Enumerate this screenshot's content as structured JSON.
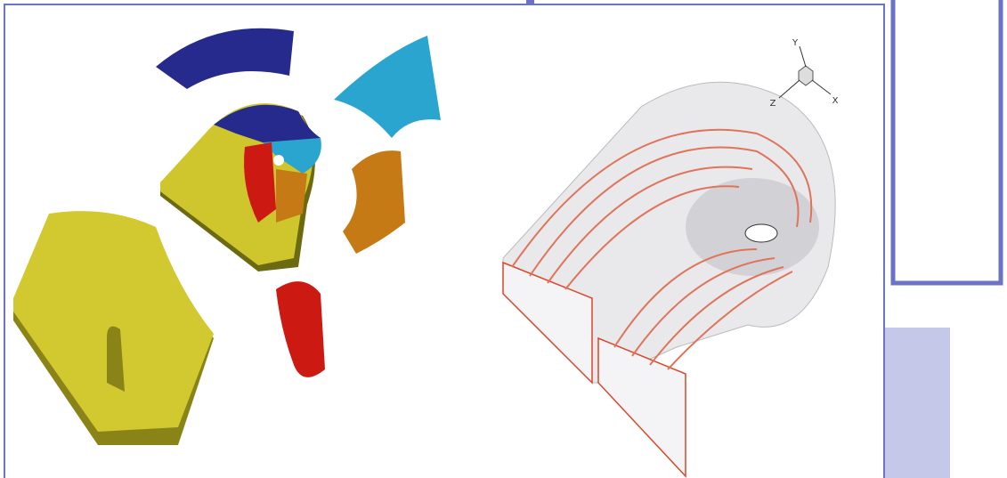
{
  "triad": {
    "labels": [
      "Y",
      "X",
      "Z"
    ]
  }
}
